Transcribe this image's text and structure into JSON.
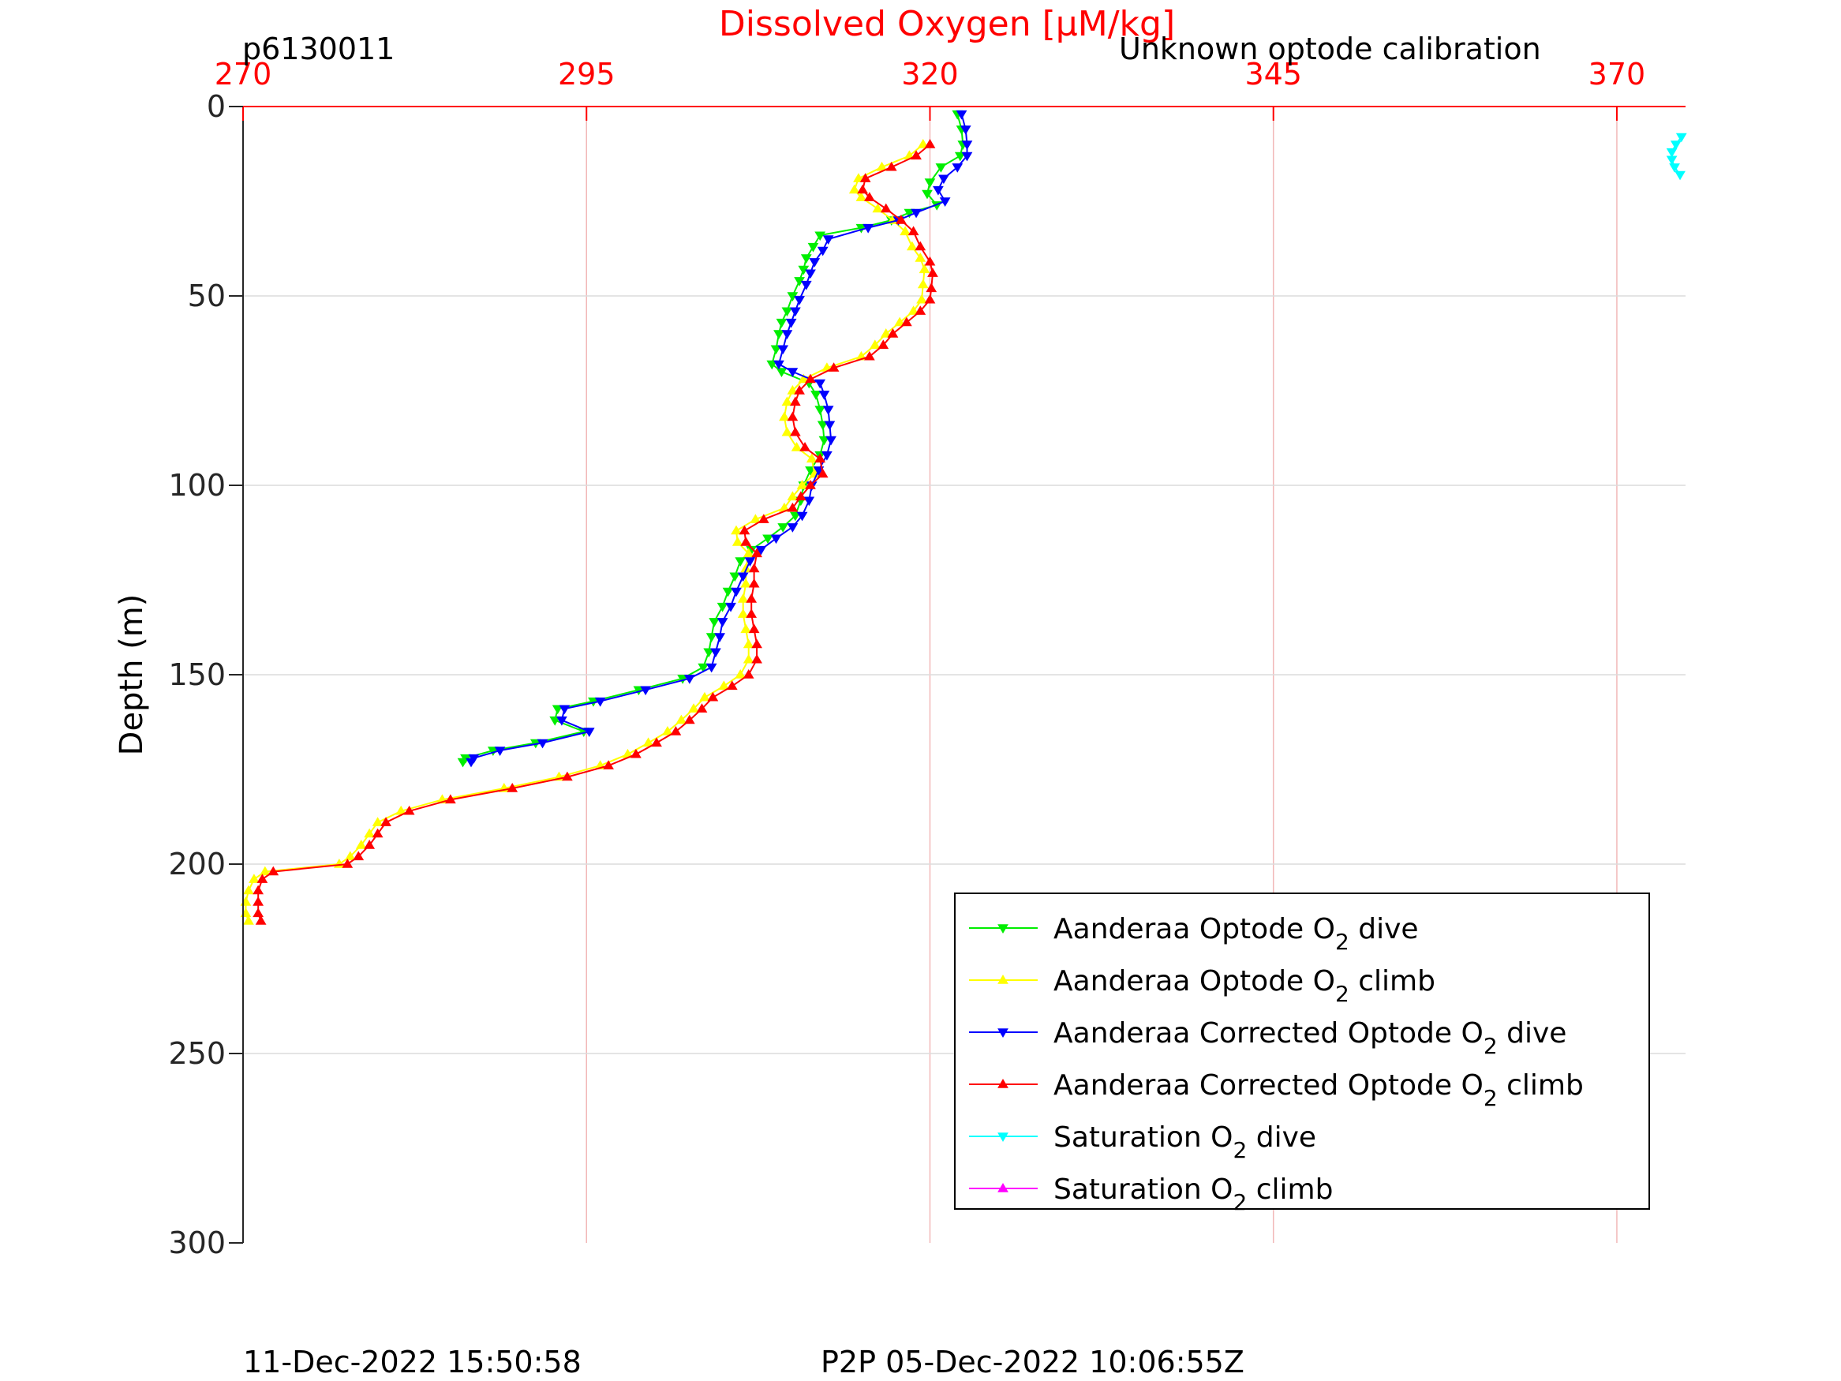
{
  "header": {
    "profile_id": "p6130011",
    "calibration_note": "Unknown optode calibration"
  },
  "footer": {
    "plot_time": "11-Dec-2022 15:50:58",
    "p2p_time": "P2P 05-Dec-2022 10:06:55Z"
  },
  "colors": {
    "axis_top": "#ff0000",
    "grid": "#f2b8b8",
    "hgrid": "#dcdcdc",
    "optode_dive": "#00ee00",
    "optode_climb": "#ffff00",
    "corrected_dive": "#0000ff",
    "corrected_climb": "#ff0000",
    "saturation_dive": "#00ffff",
    "saturation_climb": "#ff00ff"
  },
  "chart_data": {
    "type": "line",
    "title": "",
    "xlabel": "Dissolved Oxygen [μM/kg]",
    "ylabel": "Depth (m)",
    "xlim": [
      270,
      375
    ],
    "ylim": [
      0,
      300
    ],
    "x_ticks": [
      270,
      295,
      320,
      345,
      370
    ],
    "y_ticks": [
      0,
      50,
      100,
      150,
      200,
      250,
      300
    ],
    "y_reversed": true,
    "x_axis_position": "top",
    "grid": true,
    "legend_position": "bottom-right",
    "series": [
      {
        "name": "Aanderaa Optode O2 dive",
        "legend_main": "Aanderaa Optode O",
        "legend_sub": "2",
        "legend_tail": " dive",
        "color": "#00ee00",
        "marker": "down",
        "points": [
          [
            322.0,
            2
          ],
          [
            322.3,
            6
          ],
          [
            322.4,
            10
          ],
          [
            322.2,
            13
          ],
          [
            320.8,
            16
          ],
          [
            320.0,
            20
          ],
          [
            319.8,
            23
          ],
          [
            320.5,
            26
          ],
          [
            318.5,
            28
          ],
          [
            317.2,
            30
          ],
          [
            315.0,
            32
          ],
          [
            312.0,
            34
          ],
          [
            311.5,
            37
          ],
          [
            311.0,
            40
          ],
          [
            310.8,
            43
          ],
          [
            310.5,
            46
          ],
          [
            310.0,
            50
          ],
          [
            309.6,
            54
          ],
          [
            309.2,
            57
          ],
          [
            309.0,
            60
          ],
          [
            308.8,
            64
          ],
          [
            308.5,
            68
          ],
          [
            309.2,
            70
          ],
          [
            311.2,
            73
          ],
          [
            311.7,
            76
          ],
          [
            312.0,
            80
          ],
          [
            312.2,
            84
          ],
          [
            312.3,
            88
          ],
          [
            312.0,
            92
          ],
          [
            311.3,
            96
          ],
          [
            310.8,
            100
          ],
          [
            310.6,
            104
          ],
          [
            310.2,
            108
          ],
          [
            309.3,
            111
          ],
          [
            308.2,
            114
          ],
          [
            307.0,
            117
          ],
          [
            306.2,
            120
          ],
          [
            305.8,
            124
          ],
          [
            305.3,
            128
          ],
          [
            304.9,
            132
          ],
          [
            304.3,
            136
          ],
          [
            304.1,
            140
          ],
          [
            303.9,
            144
          ],
          [
            303.5,
            148
          ],
          [
            302.0,
            151
          ],
          [
            298.8,
            154
          ],
          [
            295.5,
            157
          ],
          [
            292.9,
            159
          ],
          [
            292.7,
            162
          ],
          [
            294.8,
            165
          ],
          [
            291.3,
            168
          ],
          [
            288.2,
            170
          ],
          [
            286.2,
            172
          ],
          [
            286.0,
            173
          ]
        ]
      },
      {
        "name": "Aanderaa Optode O2 climb",
        "legend_main": "Aanderaa Optode O",
        "legend_sub": "2",
        "legend_tail": " climb",
        "color": "#ffff00",
        "marker": "up",
        "points": [
          [
            319.5,
            10
          ],
          [
            318.5,
            13
          ],
          [
            316.5,
            16
          ],
          [
            314.8,
            19
          ],
          [
            314.5,
            22
          ],
          [
            315.0,
            24
          ],
          [
            316.2,
            27
          ],
          [
            317.3,
            30
          ],
          [
            318.2,
            33
          ],
          [
            318.7,
            37
          ],
          [
            319.3,
            40
          ],
          [
            319.6,
            43
          ],
          [
            319.5,
            47
          ],
          [
            319.4,
            51
          ],
          [
            318.8,
            54
          ],
          [
            317.8,
            57
          ],
          [
            316.8,
            60
          ],
          [
            316.0,
            63
          ],
          [
            315.0,
            66
          ],
          [
            312.5,
            69
          ],
          [
            310.8,
            72
          ],
          [
            310.0,
            75
          ],
          [
            309.6,
            78
          ],
          [
            309.4,
            82
          ],
          [
            309.6,
            86
          ],
          [
            310.3,
            90
          ],
          [
            311.4,
            93
          ],
          [
            311.6,
            97
          ],
          [
            310.7,
            100
          ],
          [
            310.0,
            103
          ],
          [
            309.4,
            106
          ],
          [
            307.3,
            109
          ],
          [
            305.9,
            112
          ],
          [
            306.0,
            115
          ],
          [
            306.8,
            118
          ],
          [
            306.6,
            122
          ],
          [
            306.6,
            126
          ],
          [
            306.4,
            130
          ],
          [
            306.4,
            134
          ],
          [
            306.6,
            138
          ],
          [
            306.8,
            142
          ],
          [
            306.8,
            146
          ],
          [
            306.2,
            150
          ],
          [
            305.0,
            153
          ],
          [
            303.6,
            156
          ],
          [
            302.8,
            159
          ],
          [
            301.9,
            162
          ],
          [
            300.9,
            165
          ],
          [
            299.5,
            168
          ],
          [
            298.0,
            171
          ],
          [
            296.0,
            174
          ],
          [
            293.0,
            177
          ],
          [
            289.0,
            180
          ],
          [
            284.5,
            183
          ],
          [
            281.5,
            186
          ],
          [
            279.8,
            189
          ],
          [
            279.2,
            192
          ],
          [
            278.6,
            195
          ],
          [
            277.8,
            198
          ],
          [
            277.0,
            200
          ],
          [
            271.6,
            202
          ],
          [
            270.8,
            204
          ],
          [
            270.4,
            207
          ],
          [
            270.2,
            210
          ],
          [
            270.2,
            213
          ],
          [
            270.4,
            215
          ]
        ]
      },
      {
        "name": "Aanderaa Corrected Optode O2 dive",
        "legend_main": "Aanderaa Corrected Optode O",
        "legend_sub": "2",
        "legend_tail": " dive",
        "color": "#0000ff",
        "marker": "down",
        "points": [
          [
            322.3,
            2
          ],
          [
            322.6,
            6
          ],
          [
            322.7,
            10
          ],
          [
            322.7,
            13
          ],
          [
            322.0,
            16
          ],
          [
            321.0,
            19
          ],
          [
            320.6,
            22
          ],
          [
            321.1,
            25
          ],
          [
            319.0,
            28
          ],
          [
            317.7,
            30
          ],
          [
            315.5,
            32
          ],
          [
            312.6,
            35
          ],
          [
            312.2,
            38
          ],
          [
            311.6,
            41
          ],
          [
            311.3,
            44
          ],
          [
            311.0,
            47
          ],
          [
            310.5,
            51
          ],
          [
            310.2,
            54
          ],
          [
            309.9,
            57
          ],
          [
            309.6,
            60
          ],
          [
            309.3,
            64
          ],
          [
            309.0,
            68
          ],
          [
            310.0,
            70
          ],
          [
            312.0,
            73
          ],
          [
            312.3,
            76
          ],
          [
            312.6,
            80
          ],
          [
            312.7,
            84
          ],
          [
            312.8,
            88
          ],
          [
            312.5,
            92
          ],
          [
            311.9,
            96
          ],
          [
            311.4,
            100
          ],
          [
            311.2,
            104
          ],
          [
            310.7,
            108
          ],
          [
            310.0,
            111
          ],
          [
            308.8,
            114
          ],
          [
            307.7,
            117
          ],
          [
            306.9,
            120
          ],
          [
            306.4,
            124
          ],
          [
            305.9,
            128
          ],
          [
            305.5,
            132
          ],
          [
            304.9,
            136
          ],
          [
            304.7,
            140
          ],
          [
            304.4,
            144
          ],
          [
            304.1,
            148
          ],
          [
            302.5,
            151
          ],
          [
            299.3,
            154
          ],
          [
            296.0,
            157
          ],
          [
            293.4,
            159
          ],
          [
            293.2,
            162
          ],
          [
            295.2,
            165
          ],
          [
            291.8,
            168
          ],
          [
            288.7,
            170
          ],
          [
            286.8,
            172
          ],
          [
            286.6,
            173
          ]
        ]
      },
      {
        "name": "Aanderaa Corrected Optode O2 climb",
        "legend_main": "Aanderaa Corrected Optode O",
        "legend_sub": "2",
        "legend_tail": " climb",
        "color": "#ff0000",
        "marker": "up",
        "points": [
          [
            320.0,
            10
          ],
          [
            319.0,
            13
          ],
          [
            317.2,
            16
          ],
          [
            315.3,
            19
          ],
          [
            315.1,
            22
          ],
          [
            315.6,
            24
          ],
          [
            316.8,
            27
          ],
          [
            317.9,
            30
          ],
          [
            318.8,
            33
          ],
          [
            319.3,
            37
          ],
          [
            320.0,
            41
          ],
          [
            320.2,
            44
          ],
          [
            320.1,
            48
          ],
          [
            320.0,
            51
          ],
          [
            319.3,
            54
          ],
          [
            318.3,
            57
          ],
          [
            317.3,
            60
          ],
          [
            316.6,
            63
          ],
          [
            315.6,
            66
          ],
          [
            313.0,
            69
          ],
          [
            311.3,
            72
          ],
          [
            310.5,
            75
          ],
          [
            310.2,
            78
          ],
          [
            310.0,
            82
          ],
          [
            310.2,
            86
          ],
          [
            310.9,
            90
          ],
          [
            312.0,
            93
          ],
          [
            312.2,
            97
          ],
          [
            311.3,
            100
          ],
          [
            310.6,
            103
          ],
          [
            310.0,
            106
          ],
          [
            307.9,
            109
          ],
          [
            306.5,
            112
          ],
          [
            306.6,
            115
          ],
          [
            307.4,
            118
          ],
          [
            307.2,
            122
          ],
          [
            307.2,
            126
          ],
          [
            307.0,
            130
          ],
          [
            307.0,
            134
          ],
          [
            307.2,
            138
          ],
          [
            307.4,
            142
          ],
          [
            307.4,
            146
          ],
          [
            306.8,
            150
          ],
          [
            305.6,
            153
          ],
          [
            304.2,
            156
          ],
          [
            303.4,
            159
          ],
          [
            302.5,
            162
          ],
          [
            301.5,
            165
          ],
          [
            300.1,
            168
          ],
          [
            298.6,
            171
          ],
          [
            296.6,
            174
          ],
          [
            293.6,
            177
          ],
          [
            289.6,
            180
          ],
          [
            285.1,
            183
          ],
          [
            282.1,
            186
          ],
          [
            280.4,
            189
          ],
          [
            279.8,
            192
          ],
          [
            279.2,
            195
          ],
          [
            278.4,
            198
          ],
          [
            277.6,
            200
          ],
          [
            272.2,
            202
          ],
          [
            271.4,
            204
          ],
          [
            271.1,
            207
          ],
          [
            271.1,
            210
          ],
          [
            271.1,
            213
          ],
          [
            271.3,
            215
          ]
        ]
      },
      {
        "name": "Saturation O2 dive",
        "legend_main": "Saturation O",
        "legend_sub": "2",
        "legend_tail": " dive",
        "color": "#00ffff",
        "marker": "down",
        "points": [
          [
            374.7,
            8
          ],
          [
            374.3,
            10
          ],
          [
            374.0,
            12
          ],
          [
            374.0,
            14
          ],
          [
            374.2,
            16
          ],
          [
            374.6,
            18
          ]
        ]
      },
      {
        "name": "Saturation O2 climb",
        "legend_main": "Saturation O",
        "legend_sub": "2",
        "legend_tail": " climb",
        "color": "#ff00ff",
        "marker": "up",
        "points": []
      }
    ]
  }
}
